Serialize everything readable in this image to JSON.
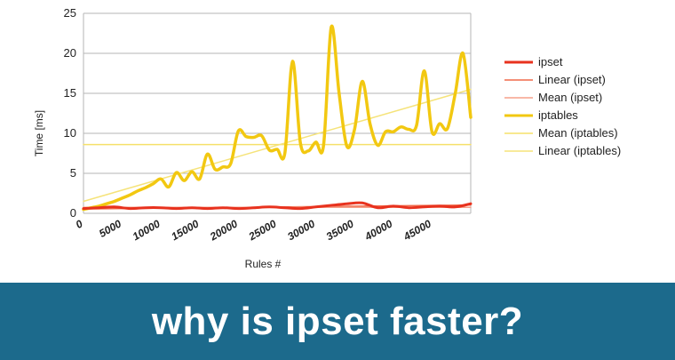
{
  "banner": {
    "text": "why is ipset faster?"
  },
  "chart_data": {
    "type": "line",
    "xlabel": "Rules #",
    "ylabel": "Time [ms]",
    "xlim": [
      0,
      50000
    ],
    "ylim": [
      0,
      25
    ],
    "x_ticks": [
      0,
      5000,
      10000,
      15000,
      20000,
      25000,
      30000,
      35000,
      40000,
      45000
    ],
    "y_ticks": [
      0,
      5,
      10,
      15,
      20,
      25
    ],
    "grid": "horizontal",
    "legend_position": "right",
    "series": [
      {
        "name": "ipset",
        "color": "#e8321e",
        "width": 3,
        "x": [
          0,
          2000,
          4000,
          6000,
          8000,
          10000,
          12000,
          14000,
          16000,
          18000,
          20000,
          22000,
          24000,
          26000,
          28000,
          30000,
          32000,
          34000,
          36000,
          38000,
          40000,
          42000,
          44000,
          46000,
          48000,
          50000
        ],
        "y": [
          0.6,
          0.7,
          0.8,
          0.6,
          0.7,
          0.7,
          0.6,
          0.7,
          0.6,
          0.7,
          0.6,
          0.7,
          0.8,
          0.7,
          0.6,
          0.8,
          1.0,
          1.2,
          1.3,
          0.7,
          0.9,
          0.7,
          0.8,
          0.9,
          0.8,
          1.2
        ]
      },
      {
        "name": "Linear (ipset)",
        "color": "#f06a4a",
        "width": 1.5,
        "x": [
          0,
          50000
        ],
        "y": [
          0.55,
          1.05
        ]
      },
      {
        "name": "Mean (ipset)",
        "color": "#f5a08a",
        "width": 1.5,
        "x": [
          0,
          50000
        ],
        "y": [
          0.75,
          0.75
        ]
      },
      {
        "name": "iptables",
        "color": "#f2c811",
        "width": 3.5,
        "x": [
          0,
          1000,
          2000,
          3000,
          4000,
          5000,
          6000,
          7000,
          8000,
          9000,
          10000,
          11000,
          12000,
          13000,
          14000,
          15000,
          16000,
          17000,
          18000,
          19000,
          20000,
          21000,
          22000,
          23000,
          24000,
          25000,
          26000,
          27000,
          28000,
          29000,
          30000,
          31000,
          32000,
          33000,
          34000,
          35000,
          36000,
          37000,
          38000,
          39000,
          40000,
          41000,
          42000,
          43000,
          44000,
          45000,
          46000,
          47000,
          48000,
          49000,
          50000
        ],
        "y": [
          0.5,
          0.7,
          0.9,
          1.2,
          1.5,
          1.9,
          2.3,
          2.8,
          3.2,
          3.7,
          4.3,
          3.3,
          5.1,
          4.1,
          5.2,
          4.3,
          7.4,
          5.5,
          5.8,
          6.2,
          10.3,
          9.6,
          9.5,
          9.7,
          7.9,
          8.0,
          7.5,
          19.0,
          8.8,
          7.8,
          8.9,
          8.5,
          23.3,
          15.0,
          8.4,
          10.5,
          16.5,
          11.2,
          8.5,
          10.2,
          10.2,
          10.8,
          10.5,
          11.0,
          17.8,
          10.2,
          11.2,
          10.6,
          15.0,
          20.0,
          12.0
        ]
      },
      {
        "name": "Mean (iptables)",
        "color": "#f5e06a",
        "width": 1.5,
        "x": [
          0,
          50000
        ],
        "y": [
          8.6,
          8.6
        ]
      },
      {
        "name": "Linear (iptables)",
        "color": "#f5e37a",
        "width": 1.5,
        "x": [
          0,
          50000
        ],
        "y": [
          1.5,
          15.5
        ]
      }
    ]
  }
}
